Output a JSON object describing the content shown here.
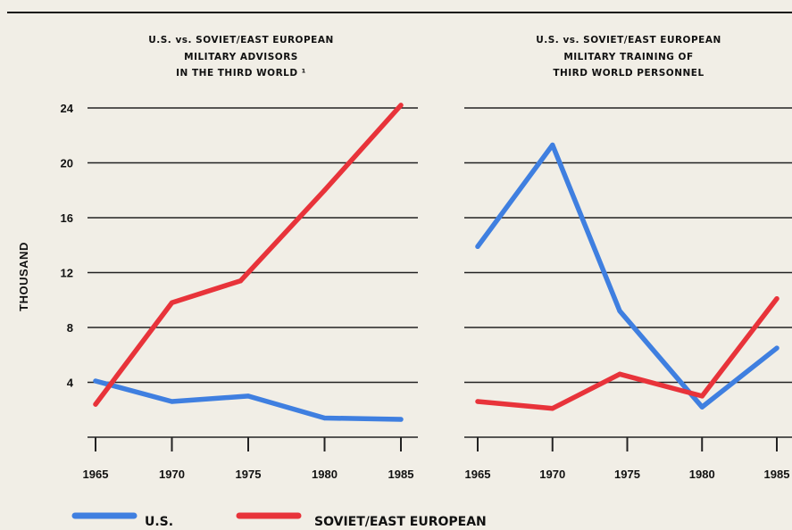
{
  "colors": {
    "us": "#3f7fe0",
    "soviet": "#e8333a",
    "grid": "#222222"
  },
  "y_axis_label": "THOUSAND",
  "legend": [
    {
      "label": "U.S.",
      "color": "#3f7fe0"
    },
    {
      "label": "SOVIET/EAST EUROPEAN",
      "color": "#e8333a"
    }
  ],
  "chart_data": [
    {
      "type": "line",
      "title_lines": [
        "U.S. vs. SOVIET/EAST EUROPEAN",
        "MILITARY ADVISORS",
        "IN THE THIRD WORLD ¹"
      ],
      "x": [
        1965,
        1970,
        1975,
        1980,
        1985
      ],
      "x_tick_labels": [
        "1965",
        "1970",
        "1975",
        "1980",
        "1985"
      ],
      "y_ticks": [
        4,
        8,
        12,
        16,
        20,
        24
      ],
      "ylim": [
        0,
        24
      ],
      "grid": true,
      "series": [
        {
          "name": "U.S.",
          "color": "#3f7fe0",
          "x": [
            1965,
            1970,
            1975,
            1980,
            1985
          ],
          "values": [
            4.1,
            2.6,
            3.0,
            1.4,
            1.3
          ]
        },
        {
          "name": "SOVIET/EAST EUROPEAN",
          "color": "#e8333a",
          "x": [
            1965,
            1970,
            1974.5,
            1980,
            1985
          ],
          "values": [
            2.4,
            9.8,
            11.4,
            18.0,
            24.2
          ]
        }
      ]
    },
    {
      "type": "line",
      "title_lines": [
        "U.S. vs. SOVIET/EAST EUROPEAN",
        "MILITARY TRAINING OF",
        "THIRD WORLD PERSONNEL"
      ],
      "x": [
        1965,
        1970,
        1975,
        1980,
        1985
      ],
      "x_tick_labels": [
        "1965",
        "1970",
        "1975",
        "1980",
        "1985"
      ],
      "y_ticks": [
        4,
        8,
        12,
        16,
        20,
        24
      ],
      "ylim": [
        0,
        24
      ],
      "grid": true,
      "series": [
        {
          "name": "U.S.",
          "color": "#3f7fe0",
          "x": [
            1965,
            1970,
            1974.5,
            1980,
            1985
          ],
          "values": [
            13.9,
            21.3,
            9.2,
            2.2,
            6.5
          ]
        },
        {
          "name": "SOVIET/EAST EUROPEAN",
          "color": "#e8333a",
          "x": [
            1965,
            1970,
            1974.5,
            1980,
            1985
          ],
          "values": [
            2.6,
            2.1,
            4.6,
            3.0,
            10.1
          ]
        }
      ]
    }
  ]
}
